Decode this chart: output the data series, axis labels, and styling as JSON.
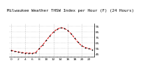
{
  "title": "Milwaukee Weather THSW Index  per Hour (F)  (24 Hours)",
  "hours": [
    0,
    1,
    2,
    3,
    4,
    5,
    6,
    7,
    8,
    9,
    10,
    11,
    12,
    13,
    14,
    15,
    16,
    17,
    18,
    19,
    20,
    21,
    22,
    23
  ],
  "thsw": [
    52,
    50,
    49,
    48,
    47,
    47,
    46,
    48,
    55,
    62,
    70,
    78,
    85,
    90,
    93,
    92,
    88,
    82,
    74,
    66,
    60,
    57,
    55,
    53
  ],
  "line_color": "#dd0000",
  "marker_color": "#000000",
  "bg_color": "#ffffff",
  "grid_color": "#999999",
  "ylim": [
    40,
    100
  ],
  "yticks": [
    45,
    55,
    65,
    75,
    85,
    95
  ],
  "xlim": [
    -0.5,
    23.5
  ],
  "title_fontsize": 4.2,
  "axis_fontsize": 3.2,
  "right_bar_color": "#000000",
  "right_bar_width": 4
}
